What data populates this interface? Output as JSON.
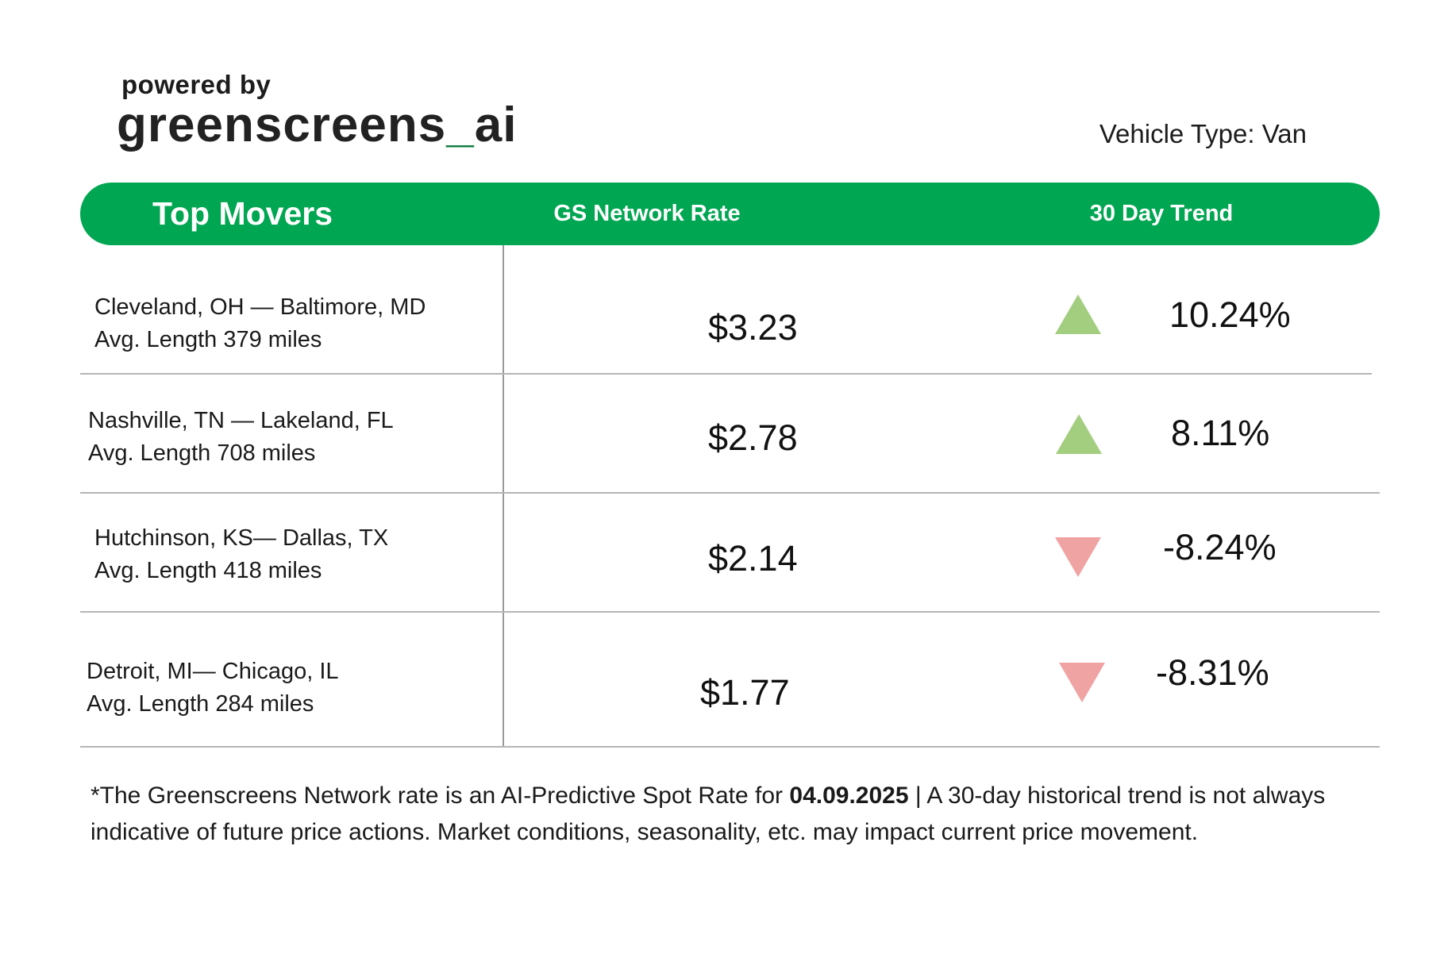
{
  "header": {
    "powered_by": "powered by",
    "brand_part1": "greenscreens",
    "brand_underscore": "_",
    "brand_part2": "ai",
    "vehicle_type": "Vehicle Type: Van"
  },
  "table": {
    "col_movers": "Top Movers",
    "col_rate": "GS Network Rate",
    "col_trend": "30 Day Trend",
    "rows": [
      {
        "lane": "Cleveland, OH — Baltimore, MD",
        "length": "Avg. Length 379 miles",
        "rate": "$3.23",
        "direction": "up",
        "trend": "10.24%"
      },
      {
        "lane": "Nashville, TN — Lakeland, FL",
        "length": "Avg. Length 708 miles",
        "rate": "$2.78",
        "direction": "up",
        "trend": "8.11%"
      },
      {
        "lane": "Hutchinson, KS— Dallas, TX",
        "length": "Avg. Length 418 miles",
        "rate": "$2.14",
        "direction": "down",
        "trend": "-8.24%"
      },
      {
        "lane": "Detroit, MI— Chicago, IL",
        "length": "Avg. Length 284 miles",
        "rate": "$1.77",
        "direction": "down",
        "trend": "-8.31%"
      }
    ]
  },
  "footnote": {
    "before": "*The Greenscreens Network rate is an AI-Predictive Spot Rate for ",
    "date": "04.09.2025",
    "after": " | A 30-day historical trend is not always indicative of future price actions. Market conditions, seasonality, etc. may impact current price movement."
  },
  "colors": {
    "brand_green": "#00a651",
    "up_triangle": "#a3cd7f",
    "down_triangle": "#f0a3a3"
  }
}
